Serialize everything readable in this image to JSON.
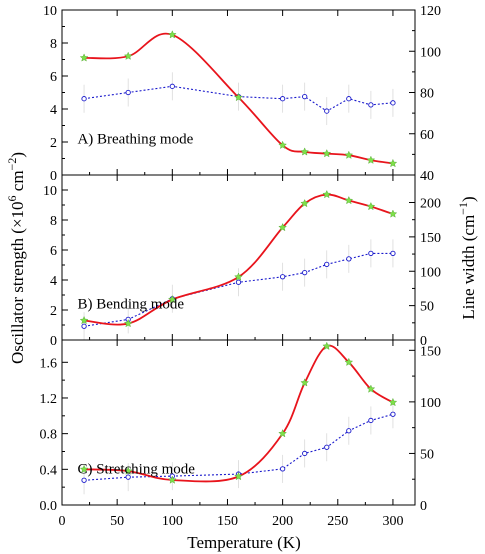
{
  "chart_data": {
    "type": "line",
    "xlabel": "Temperature (K)",
    "ylabel_left": "Oscillator strength (×10",
    "ylabel_left_sup": "6",
    "ylabel_left_unit": " cm",
    "ylabel_left_unit_sup": "−2",
    "ylabel_left_close": ")",
    "ylabel_right": "Line width (cm",
    "ylabel_right_sup": "−1",
    "ylabel_right_close": ")",
    "xlim": [
      0,
      320
    ],
    "xticks": [
      "0",
      "50",
      "100",
      "150",
      "200",
      "250",
      "300"
    ],
    "colors": {
      "strength": "#e8141c",
      "strength_marker": "#7ee04a",
      "width": "#1a1acc",
      "errorbar": "#d9d9d9"
    },
    "panels": [
      {
        "label": "A)  Breathing mode",
        "ylim_left": [
          0,
          10
        ],
        "yticks_left": [
          "0",
          "2",
          "4",
          "6",
          "8",
          "10"
        ],
        "ylim_right": [
          40,
          120
        ],
        "yticks_right": [
          "40",
          "60",
          "80",
          "100",
          "120"
        ],
        "strength": {
          "x": [
            20,
            60,
            100,
            160,
            200,
            220,
            240,
            260,
            280,
            300
          ],
          "y": [
            7.1,
            7.2,
            8.5,
            4.7,
            1.8,
            1.4,
            1.3,
            1.2,
            0.9,
            0.7
          ]
        },
        "width": {
          "x": [
            20,
            60,
            100,
            160,
            200,
            220,
            240,
            260,
            280,
            300
          ],
          "y": [
            77,
            80,
            83,
            78,
            77,
            78,
            71,
            77,
            74,
            75
          ]
        }
      },
      {
        "label": "B)  Bending mode",
        "ylim_left": [
          0,
          11
        ],
        "yticks_left": [
          "0",
          "2",
          "4",
          "6",
          "8",
          "10"
        ],
        "ylim_right": [
          0,
          240
        ],
        "yticks_right": [
          "0",
          "50",
          "100",
          "150",
          "200"
        ],
        "strength": {
          "x": [
            20,
            60,
            100,
            160,
            200,
            220,
            240,
            260,
            280,
            300
          ],
          "y": [
            1.3,
            1.1,
            2.7,
            4.2,
            7.5,
            9.1,
            9.7,
            9.3,
            8.9,
            8.4
          ]
        },
        "width": {
          "x": [
            20,
            60,
            100,
            160,
            200,
            220,
            240,
            260,
            280,
            300
          ],
          "y": [
            20,
            30,
            60,
            84,
            92,
            98,
            110,
            118,
            126,
            126
          ]
        }
      },
      {
        "label": "C)  Stretching mode",
        "ylim_left": [
          0,
          1.85
        ],
        "yticks_left": [
          "0.0",
          "0.4",
          "0.8",
          "1.2",
          "1.6"
        ],
        "ylim_right": [
          0,
          160
        ],
        "yticks_right": [
          "0",
          "50",
          "100",
          "150"
        ],
        "strength": {
          "x": [
            20,
            60,
            100,
            160,
            200,
            220,
            240,
            260,
            280,
            300
          ],
          "y": [
            0.4,
            0.38,
            0.28,
            0.32,
            0.8,
            1.37,
            1.78,
            1.6,
            1.3,
            1.15
          ]
        },
        "width": {
          "x": [
            20,
            60,
            100,
            160,
            200,
            220,
            240,
            260,
            280,
            300
          ],
          "y": [
            24,
            27,
            28,
            30,
            35,
            50,
            56,
            72,
            82,
            88
          ]
        }
      }
    ]
  }
}
